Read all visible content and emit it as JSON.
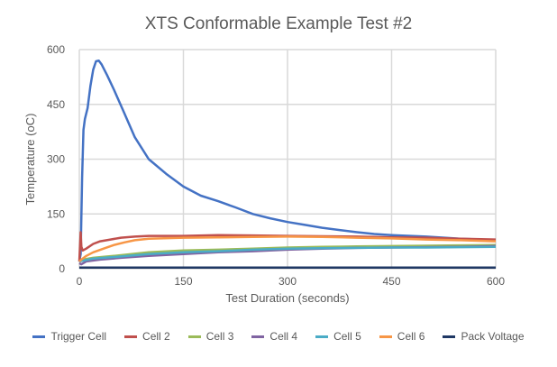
{
  "chart_data": {
    "type": "line",
    "title": "XTS Conformable Example Test #2",
    "xlabel": "Test Duration (seconds)",
    "ylabel": "Temperature (oC)",
    "xlim": [
      0,
      600
    ],
    "ylim": [
      0,
      600
    ],
    "xticks": [
      0,
      150,
      300,
      450,
      600
    ],
    "yticks": [
      0,
      150,
      300,
      450,
      600
    ],
    "grid": true,
    "legend": "bottom",
    "series": [
      {
        "name": "Trigger Cell",
        "color": "#4472C4",
        "x": [
          0,
          2,
          4,
          6,
          8,
          12,
          16,
          20,
          24,
          28,
          32,
          40,
          50,
          65,
          80,
          100,
          125,
          150,
          175,
          200,
          225,
          250,
          275,
          300,
          325,
          350,
          375,
          400,
          425,
          450,
          500,
          550,
          600
        ],
        "y": [
          20,
          40,
          250,
          380,
          410,
          440,
          500,
          545,
          568,
          570,
          560,
          530,
          490,
          425,
          360,
          300,
          260,
          225,
          200,
          185,
          168,
          150,
          138,
          128,
          120,
          112,
          106,
          100,
          95,
          92,
          88,
          82,
          78
        ]
      },
      {
        "name": "Cell 2",
        "color": "#C0504D",
        "x": [
          0,
          2,
          3,
          5,
          10,
          20,
          30,
          45,
          60,
          80,
          100,
          150,
          200,
          250,
          300,
          350,
          400,
          450,
          500,
          550,
          600
        ],
        "y": [
          20,
          100,
          60,
          50,
          55,
          68,
          75,
          80,
          85,
          88,
          90,
          90,
          92,
          91,
          90,
          89,
          88,
          86,
          85,
          82,
          80
        ]
      },
      {
        "name": "Cell 3",
        "color": "#9BBB59",
        "x": [
          0,
          5,
          20,
          50,
          100,
          150,
          200,
          250,
          300,
          350,
          400,
          450,
          500,
          550,
          600
        ],
        "y": [
          20,
          25,
          30,
          35,
          45,
          50,
          52,
          55,
          58,
          60,
          61,
          62,
          63,
          64,
          65
        ]
      },
      {
        "name": "Cell 4",
        "color": "#8064A2",
        "x": [
          0,
          3,
          10,
          30,
          60,
          100,
          150,
          200,
          250,
          300,
          350,
          400,
          450,
          500,
          550,
          600
        ],
        "y": [
          15,
          12,
          20,
          25,
          30,
          35,
          40,
          45,
          48,
          52,
          55,
          57,
          58,
          59,
          60,
          62
        ]
      },
      {
        "name": "Cell 5",
        "color": "#4BACC6",
        "x": [
          0,
          5,
          20,
          50,
          100,
          150,
          200,
          250,
          300,
          350,
          400,
          450,
          500,
          550,
          600
        ],
        "y": [
          20,
          22,
          28,
          32,
          40,
          45,
          48,
          52,
          55,
          56,
          57,
          58,
          58,
          59,
          60
        ]
      },
      {
        "name": "Cell 6",
        "color": "#F79646",
        "x": [
          0,
          3,
          10,
          20,
          35,
          50,
          65,
          80,
          100,
          150,
          200,
          250,
          300,
          350,
          400,
          450,
          500,
          550,
          600
        ],
        "y": [
          20,
          25,
          35,
          45,
          55,
          65,
          72,
          78,
          82,
          85,
          86,
          87,
          88,
          87,
          85,
          83,
          80,
          78,
          75
        ]
      },
      {
        "name": "Pack Voltage",
        "color": "#1F3864",
        "x": [
          0,
          600
        ],
        "y": [
          3,
          3
        ]
      }
    ]
  }
}
